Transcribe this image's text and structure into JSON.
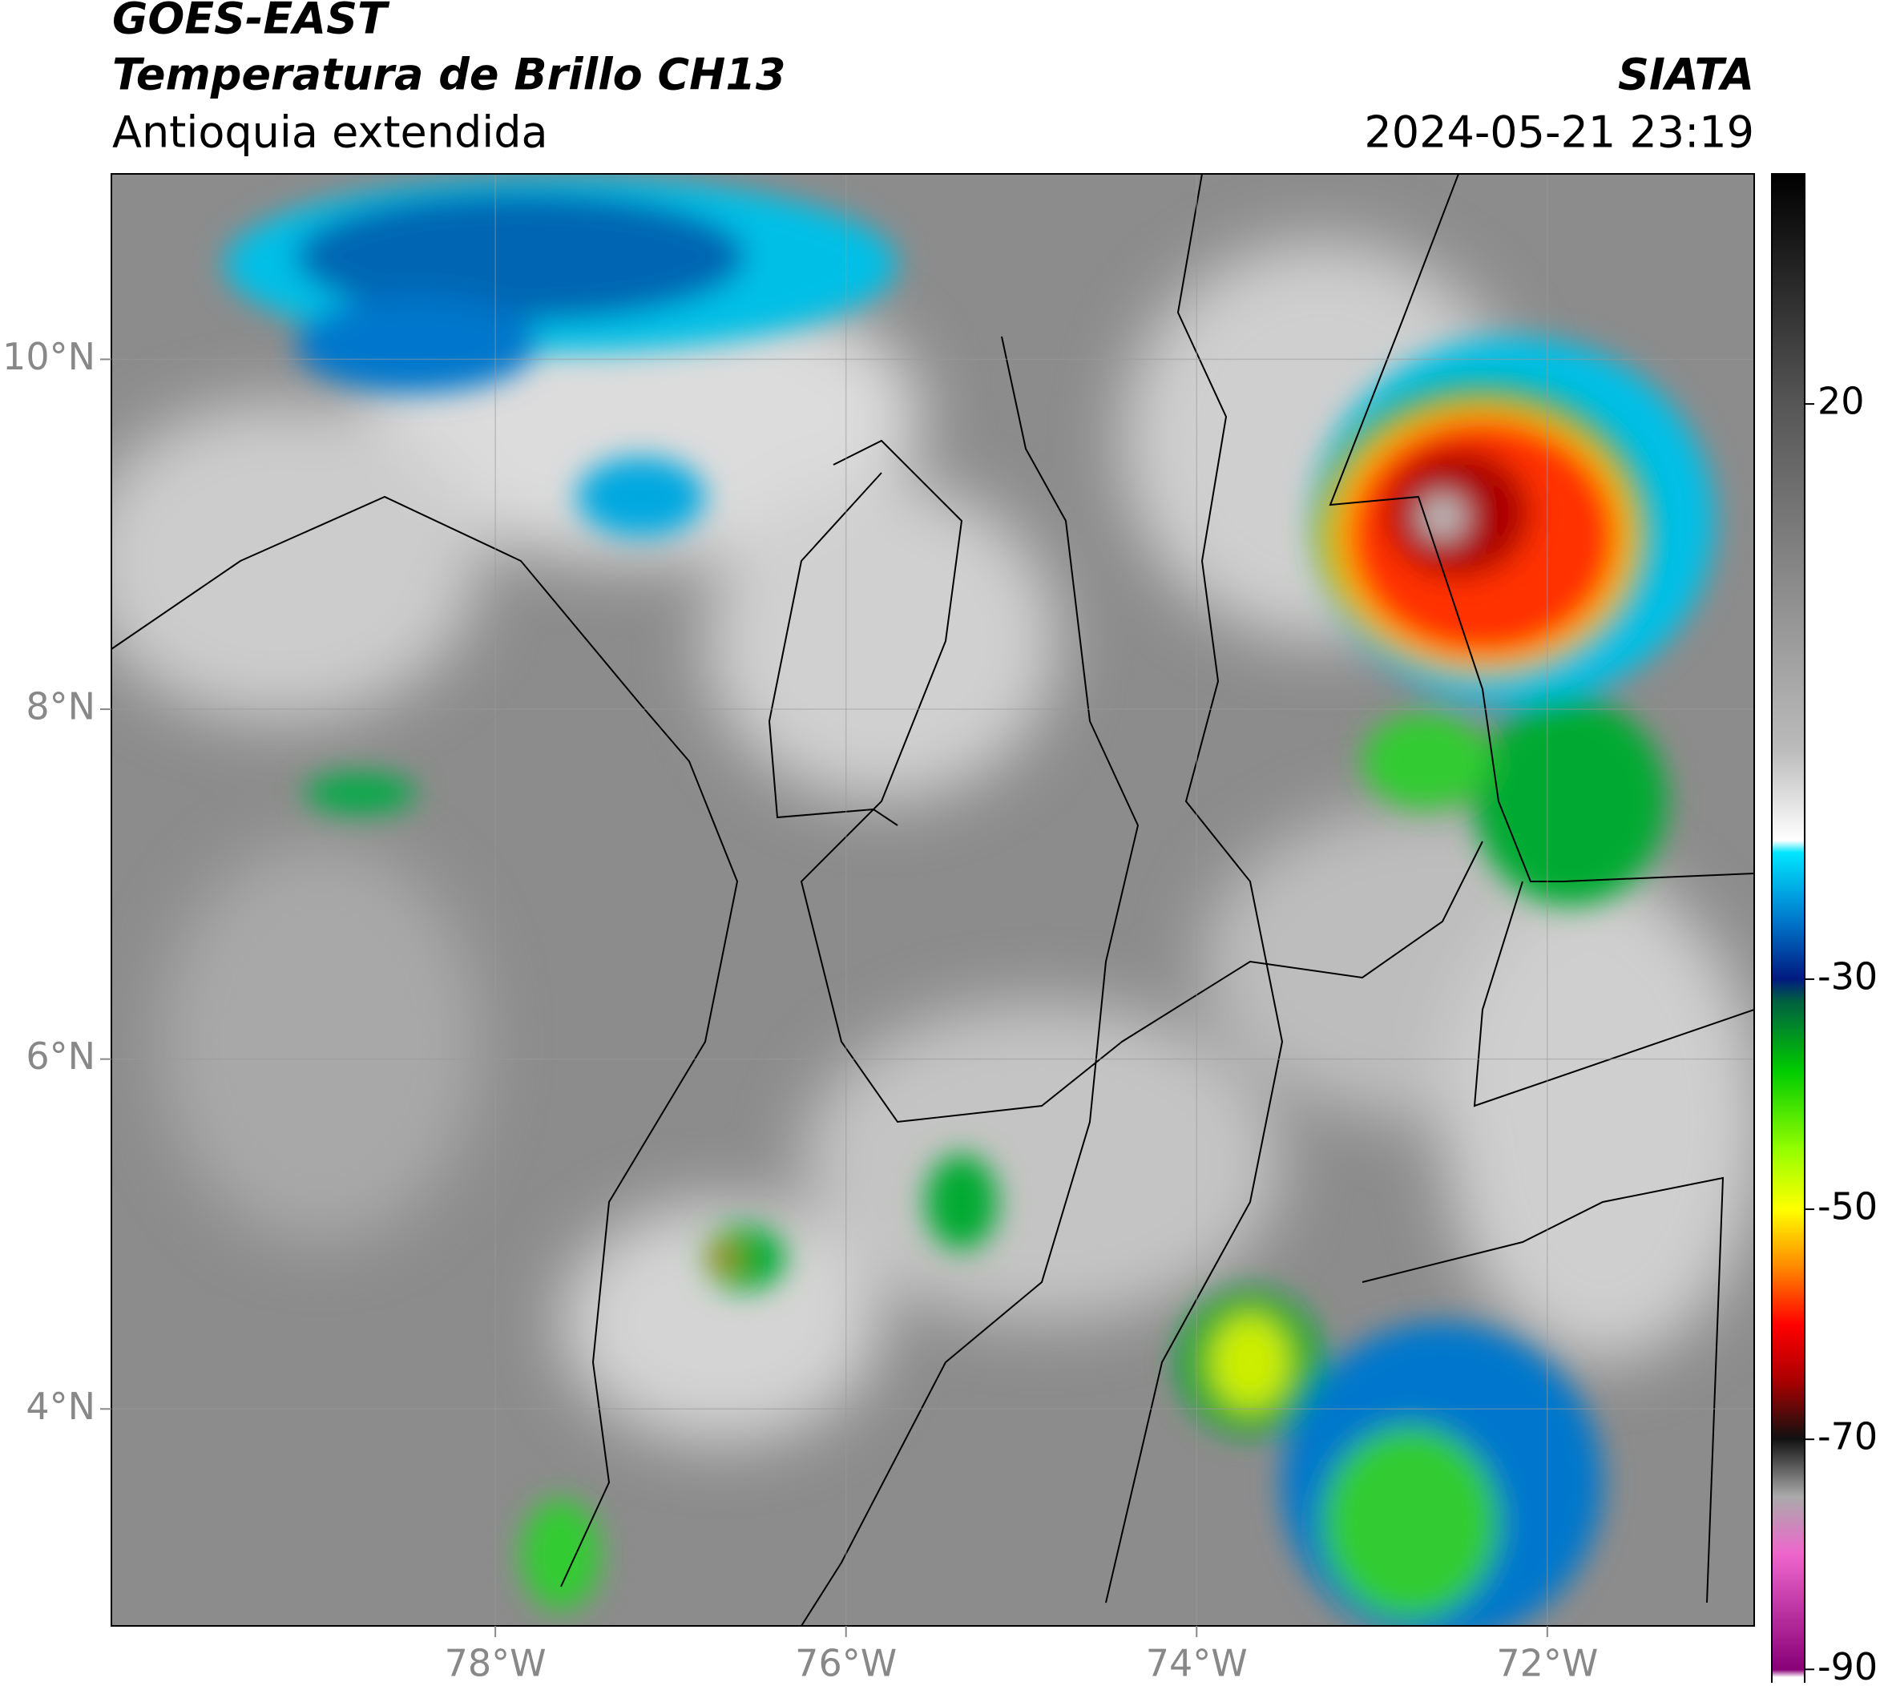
{
  "header": {
    "title": "GOES-EAST",
    "subtitle": "Temperatura de Brillo CH13",
    "region": "Antioquia extendida",
    "source": "SIATA",
    "datetime": "2024-05-21 23:19"
  },
  "map": {
    "lon_range": [
      -80.19,
      -70.82
    ],
    "lat_range": [
      2.76,
      11.06
    ],
    "lat_ticks": [
      {
        "value": 10,
        "label": "10°N"
      },
      {
        "value": 8,
        "label": "8°N"
      },
      {
        "value": 6,
        "label": "6°N"
      },
      {
        "value": 4,
        "label": "4°N"
      }
    ],
    "lon_ticks": [
      {
        "value": -78,
        "label": "78°W"
      },
      {
        "value": -76,
        "label": "76°W"
      },
      {
        "value": -74,
        "label": "74°W"
      },
      {
        "value": -72,
        "label": "72°W"
      }
    ]
  },
  "colorbar": {
    "range": [
      -92,
      40
    ],
    "ticks": [
      20,
      -30,
      -50,
      -70,
      -90
    ]
  }
}
